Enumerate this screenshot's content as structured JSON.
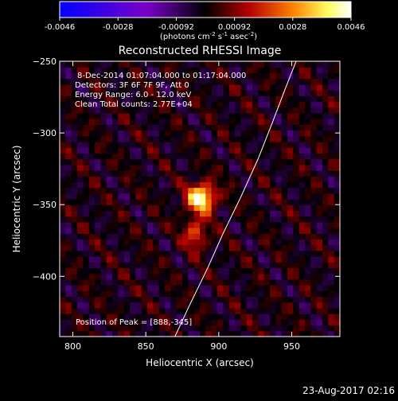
{
  "colorbar": {
    "ticks": [
      "-0.0046",
      "-0.0028",
      "-0.00092",
      "0.00092",
      "0.0028",
      "0.0046"
    ],
    "units_main": "(photons cm",
    "units_exp1": "-2",
    "units_s": " s",
    "units_exp2": "-1",
    "units_asec": " asec",
    "units_exp3": "-2",
    "units_close": ")"
  },
  "chart_data": {
    "type": "heatmap",
    "title": "Reconstructed RHESSI Image",
    "xlabel": "Heliocentric X (arcsec)",
    "ylabel": "Heliocentric Y (arcsec)",
    "xlim": [
      791,
      983
    ],
    "ylim": [
      -442,
      -250
    ],
    "x_ticks": [
      800,
      850,
      900,
      950
    ],
    "y_ticks": [
      -250,
      -300,
      -350,
      -400
    ],
    "x_tick_labels": [
      "800",
      "850",
      "900",
      "950"
    ],
    "y_tick_labels": [
      "−250",
      "−300",
      "−350",
      "−400"
    ],
    "zlim": [
      -0.0046,
      0.0046
    ],
    "colormap": [
      "#0000ff",
      "#7a00c8",
      "#000000",
      "#b40000",
      "#ff8000",
      "#ffff60",
      "#ffffff"
    ],
    "peak": {
      "x": 888,
      "y": -345
    },
    "limb_curve": [
      [
        870,
        -442
      ],
      [
        880,
        -420
      ],
      [
        892,
        -395
      ],
      [
        903,
        -370
      ],
      [
        915,
        -345
      ],
      [
        927,
        -318
      ],
      [
        937,
        -292
      ],
      [
        946,
        -268
      ],
      [
        953,
        -250
      ]
    ],
    "annotations": [
      "8-Dec-2014 01:07:04.000 to 01:17:04.000",
      "Detectors: 3F 6F 7F 9F, Att 0",
      "Energy Range: 6.0 - 12.0 keV",
      "Clean     Total counts: 2.77E+04"
    ],
    "peak_label": "Position of Peak = [888,-345]"
  },
  "footer": {
    "timestamp": "23-Aug-2017 02:16"
  }
}
